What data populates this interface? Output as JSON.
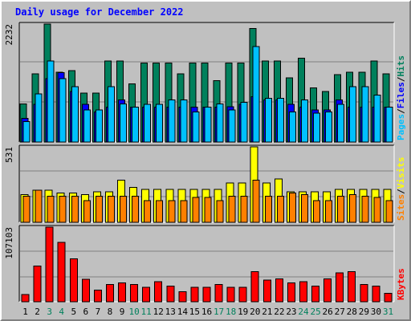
{
  "title": "Daily usage for December 2022",
  "colors": {
    "background": "#c0c0c0",
    "title": "#0000ff",
    "hits": "#00805c",
    "files": "#0000ff",
    "pages": "#00c0ff",
    "visits": "#ffff00",
    "sites": "#ff8000",
    "kbytes": "#ff0000",
    "weekend_day": "#00805c",
    "weekday_day": "#000000"
  },
  "chart_data": [
    {
      "type": "bar",
      "name": "hits_files_pages",
      "categories": [
        "1",
        "2",
        "3",
        "4",
        "5",
        "6",
        "7",
        "8",
        "9",
        "10",
        "11",
        "12",
        "13",
        "14",
        "15",
        "16",
        "17",
        "18",
        "19",
        "20",
        "21",
        "22",
        "23",
        "24",
        "25",
        "26",
        "27",
        "28",
        "29",
        "30",
        "31"
      ],
      "weekend_days": [
        "3",
        "4",
        "10",
        "11",
        "17",
        "18",
        "24",
        "25",
        "31"
      ],
      "ymax_label": "2232",
      "ylim": [
        0,
        2232
      ],
      "legend": [
        "Pages",
        "Files",
        "Hits"
      ],
      "series": [
        {
          "name": "Hits",
          "values": [
            718,
            1287,
            2232,
            1323,
            1348,
            924,
            924,
            1536,
            1536,
            1098,
            1498,
            1498,
            1498,
            1287,
            1498,
            1498,
            1161,
            1498,
            1498,
            2152,
            1536,
            1536,
            1211,
            1587,
            1023,
            960,
            1272,
            1323,
            1323,
            1536,
            1287
          ]
        },
        {
          "name": "Files",
          "values": [
            447,
            710,
            1198,
            1311,
            960,
            710,
            571,
            660,
            798,
            660,
            660,
            660,
            660,
            660,
            660,
            660,
            660,
            671,
            710,
            860,
            798,
            798,
            710,
            660,
            610,
            610,
            798,
            660,
            660,
            660,
            660
          ]
        },
        {
          "name": "Pages",
          "values": [
            389,
            911,
            1536,
            1198,
            1048,
            610,
            610,
            1048,
            724,
            660,
            710,
            710,
            798,
            798,
            571,
            660,
            724,
            610,
            748,
            1810,
            824,
            824,
            571,
            798,
            548,
            571,
            710,
            1048,
            1048,
            885,
            660
          ]
        }
      ]
    },
    {
      "type": "bar",
      "name": "visits_sites",
      "categories": [
        "1",
        "2",
        "3",
        "4",
        "5",
        "6",
        "7",
        "8",
        "9",
        "10",
        "11",
        "12",
        "13",
        "14",
        "15",
        "16",
        "17",
        "18",
        "19",
        "20",
        "21",
        "22",
        "23",
        "24",
        "25",
        "26",
        "27",
        "28",
        "29",
        "30",
        "31"
      ],
      "ymax_label": "531",
      "ylim": [
        0,
        531
      ],
      "legend": [
        "Sites",
        "Visits"
      ],
      "series": [
        {
          "name": "Visits",
          "values": [
            194,
            226,
            226,
            205,
            205,
            194,
            214,
            214,
            296,
            247,
            232,
            232,
            232,
            232,
            232,
            232,
            232,
            278,
            278,
            531,
            278,
            305,
            214,
            214,
            214,
            214,
            232,
            232,
            232,
            232,
            232
          ]
        },
        {
          "name": "Sites",
          "values": [
            184,
            226,
            184,
            184,
            184,
            153,
            184,
            184,
            184,
            184,
            153,
            153,
            153,
            153,
            174,
            174,
            153,
            184,
            184,
            296,
            184,
            184,
            205,
            194,
            153,
            153,
            184,
            194,
            184,
            174,
            153
          ]
        }
      ]
    },
    {
      "type": "bar",
      "name": "kbytes",
      "categories": [
        "1",
        "2",
        "3",
        "4",
        "5",
        "6",
        "7",
        "8",
        "9",
        "10",
        "11",
        "12",
        "13",
        "14",
        "15",
        "16",
        "17",
        "18",
        "19",
        "20",
        "21",
        "22",
        "23",
        "24",
        "25",
        "26",
        "27",
        "28",
        "29",
        "30",
        "31"
      ],
      "ymax_label": "107103",
      "ylim": [
        0,
        107103
      ],
      "legend": [
        "KBytes"
      ],
      "series": [
        {
          "name": "KBytes",
          "values": [
            10300,
            51500,
            107103,
            85500,
            61800,
            32000,
            16500,
            24700,
            26800,
            24700,
            20600,
            28800,
            22600,
            14400,
            20600,
            20600,
            24700,
            20600,
            20600,
            43200,
            30900,
            32900,
            26800,
            28800,
            22600,
            32900,
            41200,
            43200,
            24700,
            22600,
            12300
          ]
        }
      ]
    }
  ]
}
